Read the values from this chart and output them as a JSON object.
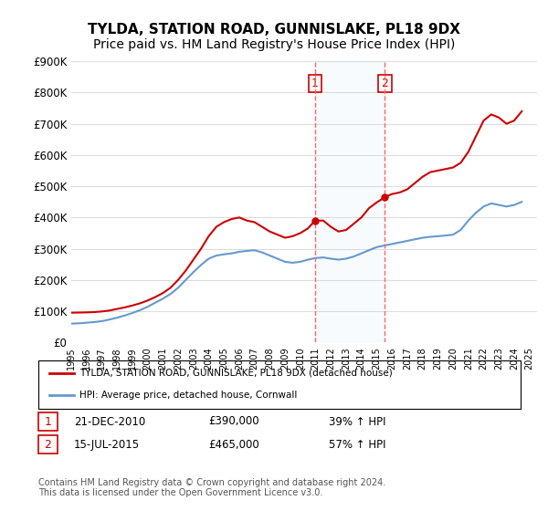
{
  "title": "TYLDA, STATION ROAD, GUNNISLAKE, PL18 9DX",
  "subtitle": "Price paid vs. HM Land Registry's House Price Index (HPI)",
  "title_fontsize": 11,
  "subtitle_fontsize": 10,
  "background_color": "#ffffff",
  "plot_bg_color": "#ffffff",
  "grid_color": "#dddddd",
  "ylim": [
    0,
    900000
  ],
  "yticks": [
    0,
    100000,
    200000,
    300000,
    400000,
    500000,
    600000,
    700000,
    800000,
    900000
  ],
  "ytick_labels": [
    "£0",
    "£100K",
    "£200K",
    "£300K",
    "£400K",
    "£500K",
    "£600K",
    "£700K",
    "£800K",
    "£900K"
  ],
  "xlim_start": 1995.0,
  "xlim_end": 2025.5,
  "red_color": "#cc0000",
  "blue_color": "#6699cc",
  "vline_color": "#ff6666",
  "purchase1_x": 2010.97,
  "purchase1_label": "1",
  "purchase1_date": "21-DEC-2010",
  "purchase1_price": "£390,000",
  "purchase1_hpi": "39% ↑ HPI",
  "purchase2_x": 2015.54,
  "purchase2_label": "2",
  "purchase2_date": "15-JUL-2015",
  "purchase2_price": "£465,000",
  "purchase2_hpi": "57% ↑ HPI",
  "legend_label_red": "TYLDA, STATION ROAD, GUNNISLAKE, PL18 9DX (detached house)",
  "legend_label_blue": "HPI: Average price, detached house, Cornwall",
  "footer_text": "Contains HM Land Registry data © Crown copyright and database right 2024.\nThis data is licensed under the Open Government Licence v3.0.",
  "red_x": [
    1995.0,
    1995.5,
    1996.0,
    1996.5,
    1997.0,
    1997.5,
    1998.0,
    1998.5,
    1999.0,
    1999.5,
    2000.0,
    2000.5,
    2001.0,
    2001.5,
    2002.0,
    2002.5,
    2003.0,
    2003.5,
    2004.0,
    2004.5,
    2005.0,
    2005.5,
    2006.0,
    2006.5,
    2007.0,
    2007.5,
    2008.0,
    2008.5,
    2009.0,
    2009.5,
    2010.0,
    2010.5,
    2010.97,
    2011.5,
    2012.0,
    2012.5,
    2013.0,
    2013.5,
    2014.0,
    2014.5,
    2015.0,
    2015.54,
    2016.0,
    2016.5,
    2017.0,
    2017.5,
    2018.0,
    2018.5,
    2019.0,
    2019.5,
    2020.0,
    2020.5,
    2021.0,
    2021.5,
    2022.0,
    2022.5,
    2023.0,
    2023.5,
    2024.0,
    2024.5
  ],
  "red_y": [
    95000,
    95500,
    96000,
    97000,
    99000,
    102000,
    107000,
    112000,
    118000,
    125000,
    134000,
    145000,
    158000,
    175000,
    200000,
    230000,
    265000,
    300000,
    340000,
    370000,
    385000,
    395000,
    400000,
    390000,
    385000,
    370000,
    355000,
    345000,
    335000,
    340000,
    350000,
    365000,
    390000,
    390000,
    370000,
    355000,
    360000,
    380000,
    400000,
    430000,
    448000,
    465000,
    475000,
    480000,
    490000,
    510000,
    530000,
    545000,
    550000,
    555000,
    560000,
    575000,
    610000,
    660000,
    710000,
    730000,
    720000,
    700000,
    710000,
    740000
  ],
  "blue_x": [
    1995.0,
    1995.5,
    1996.0,
    1996.5,
    1997.0,
    1997.5,
    1998.0,
    1998.5,
    1999.0,
    1999.5,
    2000.0,
    2000.5,
    2001.0,
    2001.5,
    2002.0,
    2002.5,
    2003.0,
    2003.5,
    2004.0,
    2004.5,
    2005.0,
    2005.5,
    2006.0,
    2006.5,
    2007.0,
    2007.5,
    2008.0,
    2008.5,
    2009.0,
    2009.5,
    2010.0,
    2010.5,
    2011.0,
    2011.5,
    2012.0,
    2012.5,
    2013.0,
    2013.5,
    2014.0,
    2014.5,
    2015.0,
    2015.5,
    2016.0,
    2016.5,
    2017.0,
    2017.5,
    2018.0,
    2018.5,
    2019.0,
    2019.5,
    2020.0,
    2020.5,
    2021.0,
    2021.5,
    2022.0,
    2022.5,
    2023.0,
    2023.5,
    2024.0,
    2024.5
  ],
  "blue_y": [
    60000,
    61000,
    63000,
    65000,
    68000,
    73000,
    79000,
    86000,
    94000,
    103000,
    114000,
    127000,
    140000,
    155000,
    175000,
    200000,
    225000,
    248000,
    268000,
    278000,
    282000,
    285000,
    290000,
    293000,
    295000,
    288000,
    278000,
    268000,
    258000,
    255000,
    258000,
    265000,
    270000,
    272000,
    268000,
    265000,
    268000,
    275000,
    285000,
    295000,
    305000,
    310000,
    315000,
    320000,
    325000,
    330000,
    335000,
    338000,
    340000,
    342000,
    345000,
    360000,
    390000,
    415000,
    435000,
    445000,
    440000,
    435000,
    440000,
    450000
  ]
}
